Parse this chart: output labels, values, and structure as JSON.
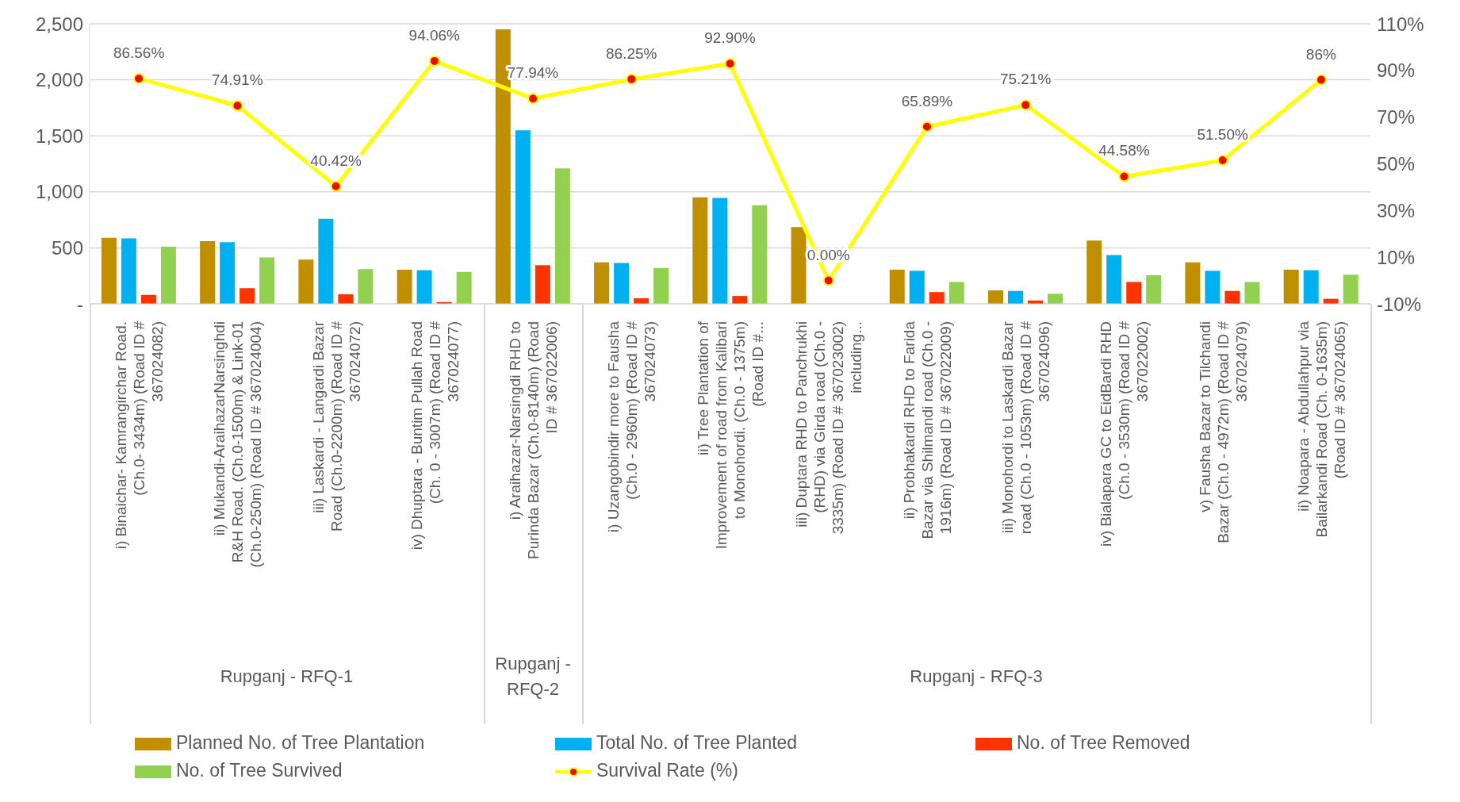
{
  "chart_data": {
    "type": "bar",
    "categories": [
      "i) Binaichar- Kamrangirchar Road. (Ch.0- 3434m) (Road ID # 367024082)",
      "ii) Mukandi-AraihazarNarsinghdi R&H Road. (Ch.0-1500m) & Link-01 (Ch.0-250m) (Road ID # 367024004)",
      "iii) Laskardi - Langardi Bazar Road (Ch.0-2200m) (Road ID # 367024072)",
      "iv) Dhuptara - Buntim Pullah Road (Ch. 0 - 3007m) (Road ID # 367024077)",
      "i) Araihazar-Narsingdi RHD to Purinda Bazar (Ch.0-8140m) (Road ID # 367022006)",
      "i) Uzangobindir more to Fausha (Ch.0 - 2960m) (Road ID # 367024073)",
      "ii) Tree Plantation of Improvement of road from Kalibari to Monohordi. (Ch.0 - 1375m) (Road ID #...",
      "iii) Duptara RHD to Panchrukhi (RHD) via Girda road (Ch.0 - 3335m) (Road ID # 367023002) including...",
      "ii) Probhakardi RHD to Farida Bazar via  Shilmandi road (Ch.0 - 1916m) (Road ID # 367022009)",
      "iii) Monohordi to Laskardi Bazar road (Ch.0 - 1053m) (Road ID # 367024096)",
      "iv) Bialapara GC to EidBardi RHD (Ch.0 - 3530m) (Road ID # 367022002)",
      "v) Fausha Bazar to Tilchandi Bazar (Ch.0 - 4972m) (Road ID # 367024079)",
      "ii) Noapara - Abdullahpur via Bailarkandi Road (Ch. 0-1635m) (Road ID # 367024065)"
    ],
    "series": [
      {
        "name": "Planned No. of Tree Plantation",
        "color": "#bf8f00",
        "values": [
          590,
          560,
          395,
          305,
          2450,
          370,
          950,
          685,
          305,
          120,
          565,
          370,
          305
        ]
      },
      {
        "name": "Total No. of Tree Planted",
        "color": "#00b0f0",
        "values": [
          585,
          550,
          760,
          300,
          1550,
          365,
          945,
          null,
          295,
          115,
          435,
          295,
          300
        ]
      },
      {
        "name": "No. of Tree Removed",
        "color": "#ff3300",
        "values": [
          80,
          140,
          85,
          15,
          345,
          50,
          70,
          null,
          105,
          30,
          195,
          115,
          45
        ]
      },
      {
        "name": "No. of Tree Survived",
        "color": "#92d050",
        "values": [
          510,
          415,
          310,
          285,
          1210,
          320,
          880,
          null,
          195,
          90,
          255,
          195,
          260
        ]
      },
      {
        "name": "Survival Rate (%)",
        "type": "line",
        "axis": "y2",
        "color": "#ffff00",
        "marker": "circle",
        "values": [
          86.56,
          74.91,
          40.42,
          94.06,
          77.94,
          86.25,
          92.9,
          0,
          65.89,
          75.21,
          44.58,
          51.5,
          86
        ],
        "value_labels": [
          "86.56%",
          "74.91%",
          "40.42%",
          "94.06%",
          "77.94%",
          "86.25%",
          "92.90%",
          "0.00%",
          "65.89%",
          "75.21%",
          "44.58%",
          "51.50%",
          "86%"
        ]
      }
    ],
    "ylim": [
      0,
      2500
    ],
    "yticks": [
      {
        "value": 0,
        "label": "-"
      },
      {
        "value": 500,
        "label": "500"
      },
      {
        "value": 1000,
        "label": "1,000"
      },
      {
        "value": 1500,
        "label": "1,500"
      },
      {
        "value": 2000,
        "label": "2,000"
      },
      {
        "value": 2500,
        "label": "2,500"
      }
    ],
    "y2lim": [
      -10,
      110
    ],
    "y2ticks": [
      {
        "value": -10,
        "label": "-10%"
      },
      {
        "value": 10,
        "label": "10%"
      },
      {
        "value": 30,
        "label": "30%"
      },
      {
        "value": 50,
        "label": "50%"
      },
      {
        "value": 70,
        "label": "70%"
      },
      {
        "value": 90,
        "label": "90%"
      },
      {
        "value": 110,
        "label": "110%"
      }
    ],
    "annotations": [
      "Rupganj - RFQ-1",
      "Rupganj - RFQ-2",
      "Rupganj - RFQ-3"
    ],
    "grid": "y",
    "legend": "bottom"
  }
}
